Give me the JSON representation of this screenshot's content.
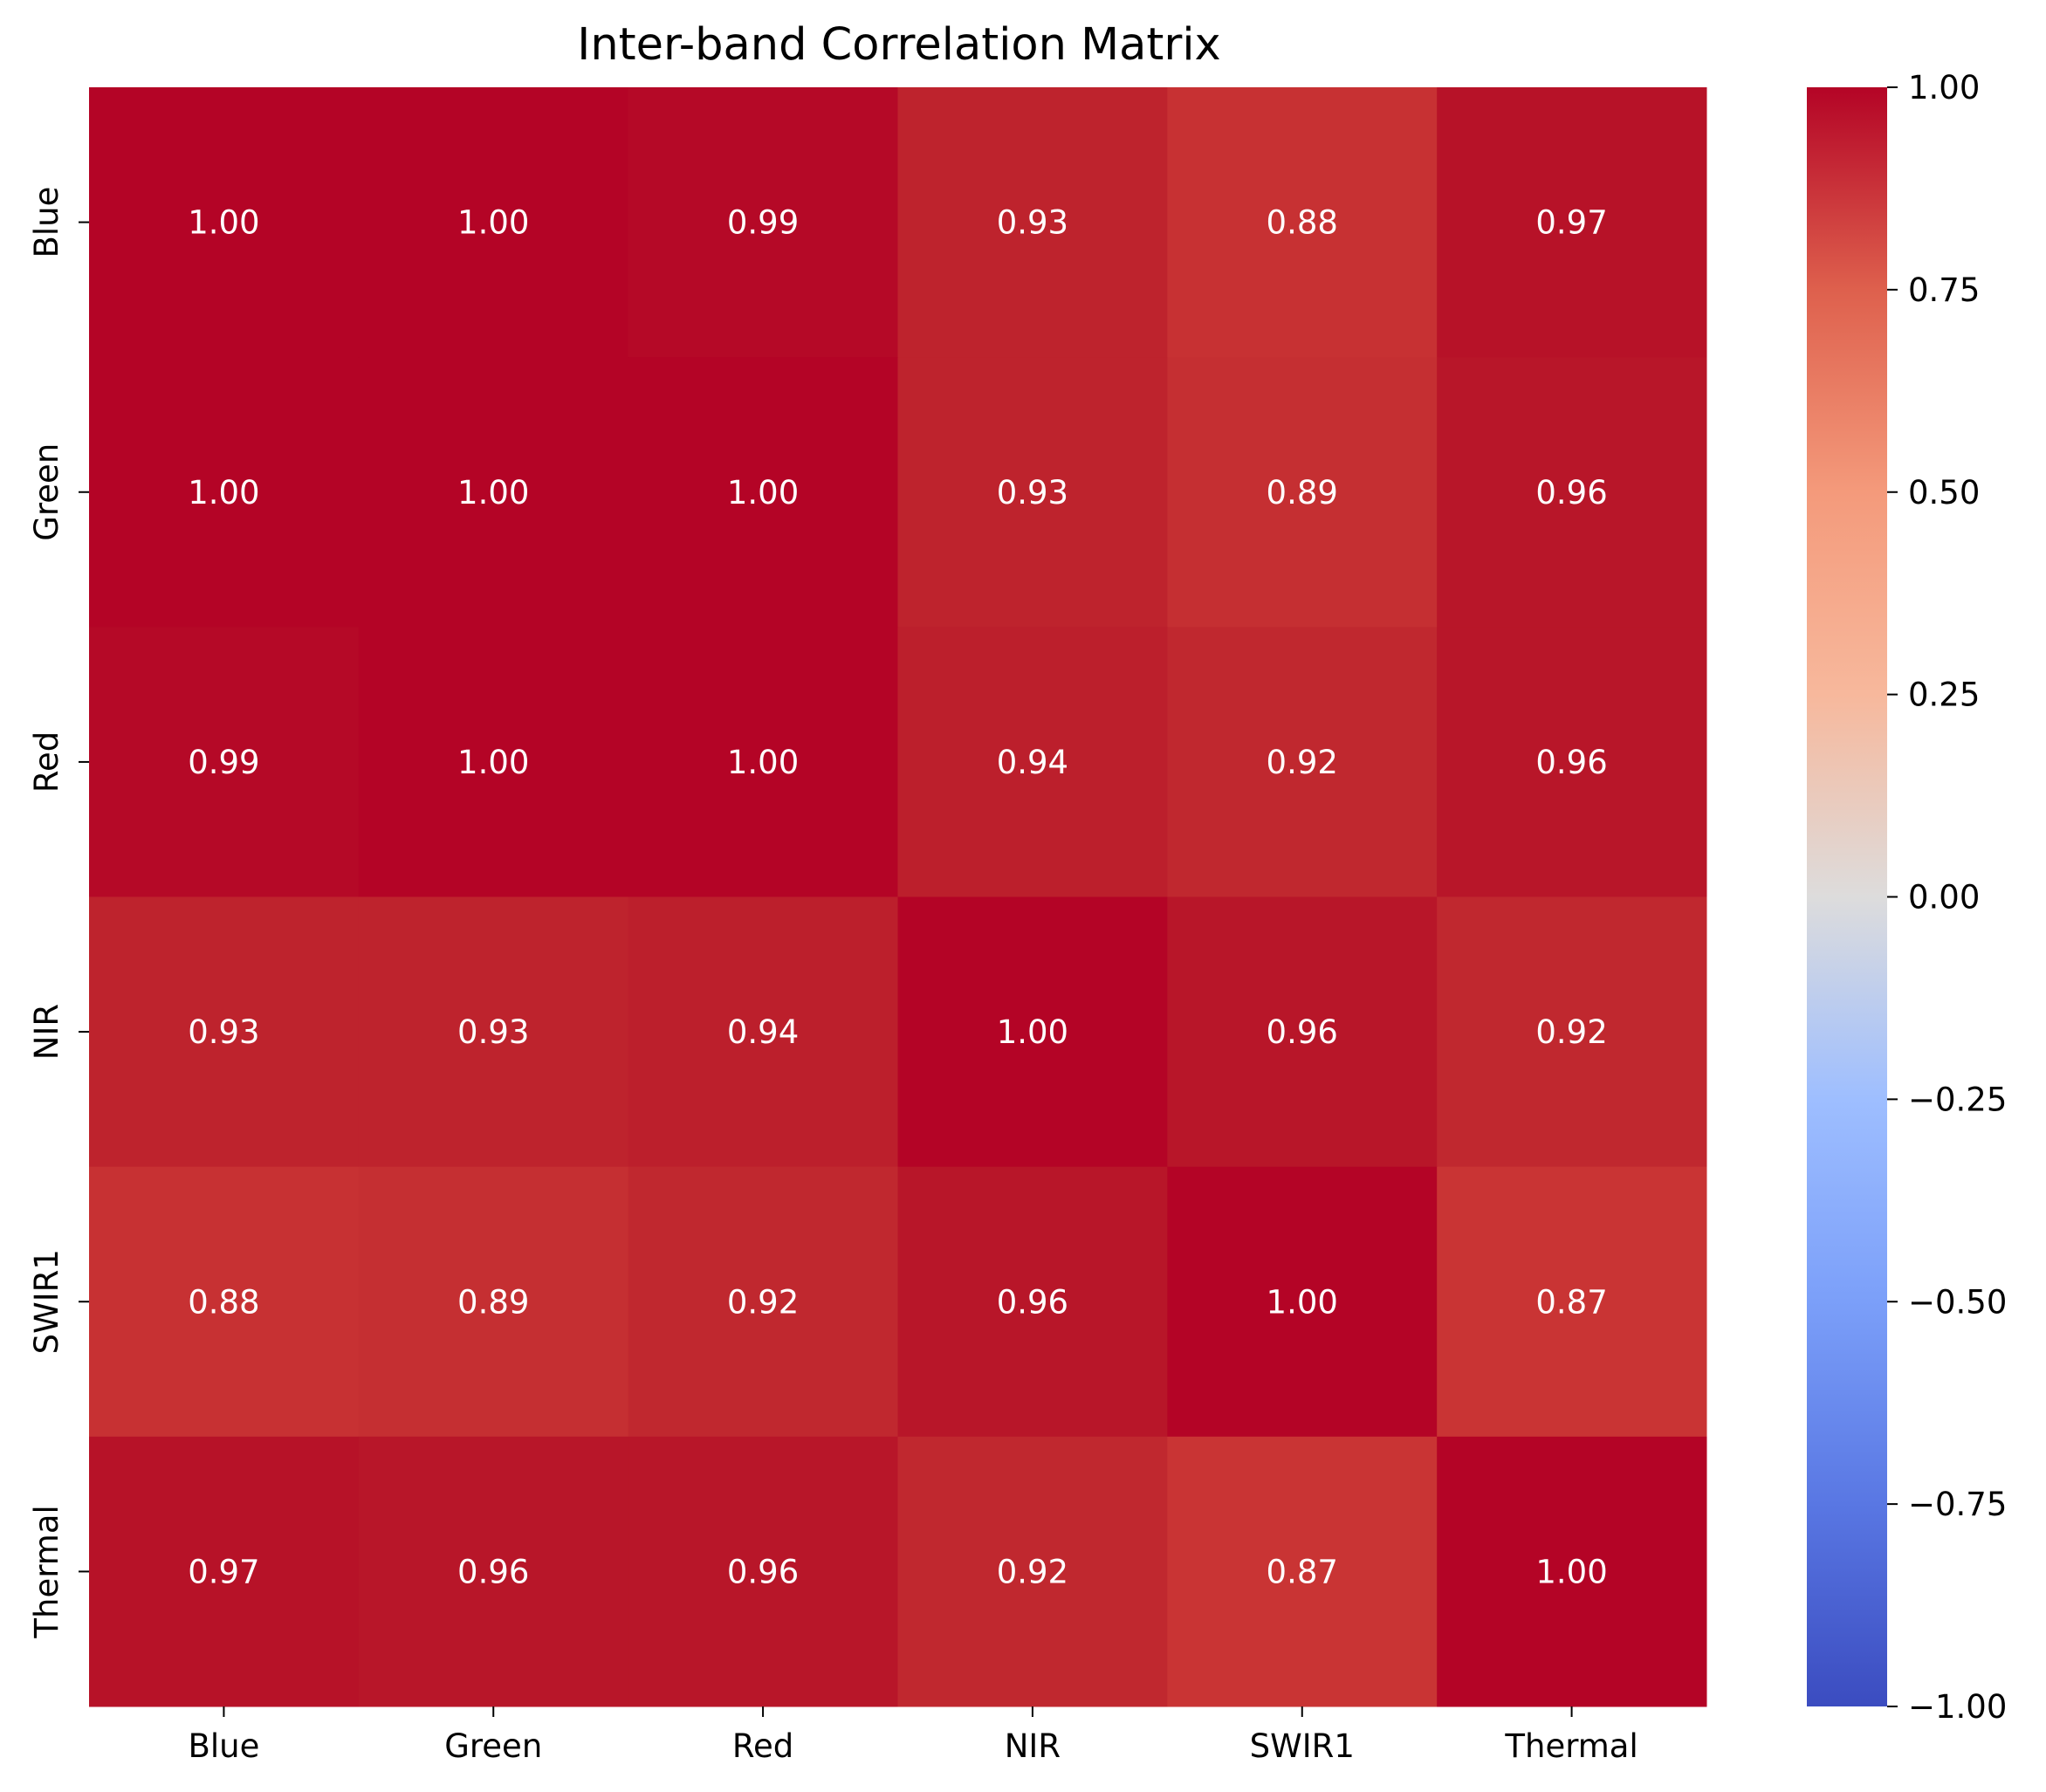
{
  "chart_data": {
    "type": "heatmap",
    "title": "Inter-band Correlation Matrix",
    "xlabel": "",
    "ylabel": "",
    "x_categories": [
      "Blue",
      "Green",
      "Red",
      "NIR",
      "SWIR1",
      "Thermal"
    ],
    "y_categories": [
      "Blue",
      "Green",
      "Red",
      "NIR",
      "SWIR1",
      "Thermal"
    ],
    "values": [
      [
        1.0,
        1.0,
        0.99,
        0.93,
        0.88,
        0.97
      ],
      [
        1.0,
        1.0,
        1.0,
        0.93,
        0.89,
        0.96
      ],
      [
        0.99,
        1.0,
        1.0,
        0.94,
        0.92,
        0.96
      ],
      [
        0.93,
        0.93,
        0.94,
        1.0,
        0.96,
        0.92
      ],
      [
        0.88,
        0.89,
        0.92,
        0.96,
        1.0,
        0.87
      ],
      [
        0.97,
        0.96,
        0.96,
        0.92,
        0.87,
        1.0
      ]
    ],
    "value_format": "0.00",
    "colormap": "coolwarm",
    "colorbar": {
      "range": [
        -1.0,
        1.0
      ],
      "ticks": [
        1.0,
        0.75,
        0.5,
        0.25,
        0.0,
        -0.25,
        -0.5,
        -0.75,
        -1.0
      ],
      "tick_labels": [
        "1.00",
        "0.75",
        "0.50",
        "0.25",
        "0.00",
        "−0.25",
        "−0.50",
        "−0.75",
        "−1.00"
      ],
      "placement": "right"
    },
    "grid": false,
    "annotation_color": "#ffffff"
  }
}
